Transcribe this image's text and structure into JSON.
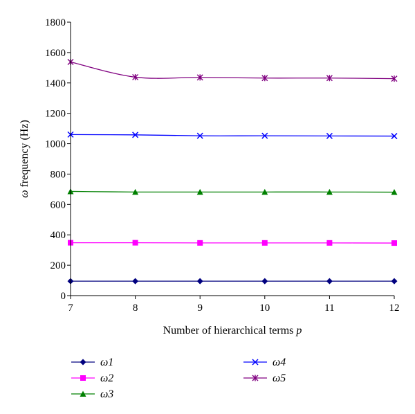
{
  "chart_data": {
    "type": "line",
    "xlabel_parts": {
      "main": "Number of hierarchical terms ",
      "italic": "p"
    },
    "ylabel_parts": {
      "italic": "ω",
      "main": " frequency (Hz)"
    },
    "x": [
      7,
      8,
      9,
      10,
      11,
      12
    ],
    "xlim": [
      7,
      12
    ],
    "ylim": [
      0,
      1800
    ],
    "xticks": [
      7,
      8,
      9,
      10,
      11,
      12
    ],
    "yticks": [
      0,
      200,
      400,
      600,
      800,
      1000,
      1200,
      1400,
      1600,
      1800
    ],
    "grid": false,
    "legend_position": "bottom",
    "series": [
      {
        "name": "ω1",
        "color": "#00007f",
        "marker": "diamond",
        "values": [
          95,
          95,
          95,
          95,
          95,
          95
        ]
      },
      {
        "name": "ω2",
        "color": "#ff00ff",
        "marker": "square",
        "values": [
          348,
          348,
          347,
          347,
          347,
          346
        ]
      },
      {
        "name": "ω3",
        "color": "#008000",
        "marker": "triangle",
        "values": [
          686,
          682,
          682,
          682,
          682,
          681
        ]
      },
      {
        "name": "ω4",
        "color": "#0000ff",
        "marker": "x",
        "values": [
          1060,
          1058,
          1052,
          1052,
          1051,
          1050
        ]
      },
      {
        "name": "ω5",
        "color": "#800080",
        "marker": "star",
        "values": [
          1538,
          1438,
          1436,
          1432,
          1432,
          1428
        ]
      }
    ]
  }
}
